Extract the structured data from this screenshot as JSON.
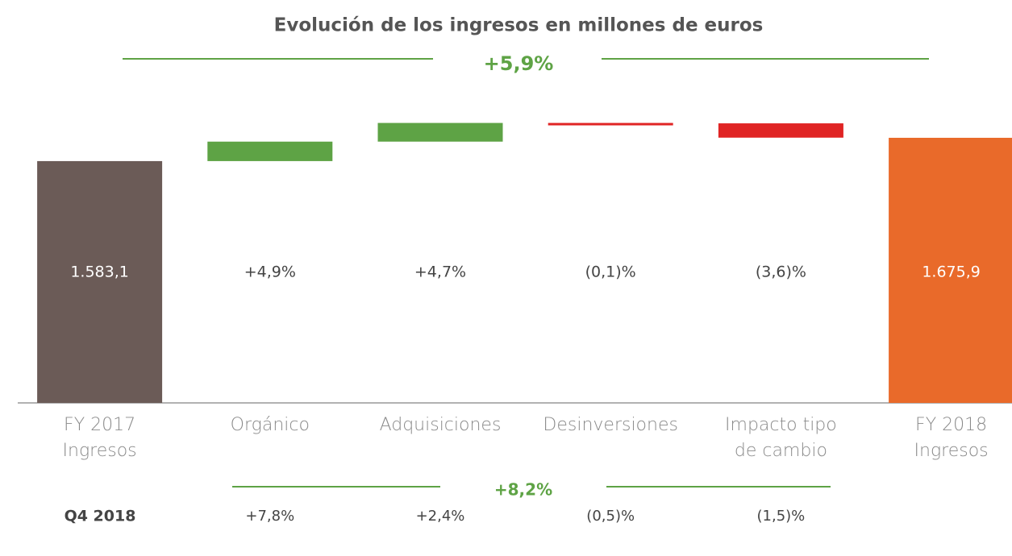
{
  "chart_data": {
    "type": "waterfall",
    "title": "Evolución de los ingresos en millones de euros",
    "total_change": "+5,9%",
    "categories": [
      "FY 2017\nIngresos",
      "Orgánico",
      "Adquisiciones",
      "Desinversiones",
      "Impacto tipo\nde cambio",
      "FY 2018\nIngresos"
    ],
    "values": [
      1583.1,
      4.9,
      4.7,
      -0.1,
      -3.6,
      1675.9
    ],
    "value_labels": [
      "1.583,1",
      "+4,9%",
      "+4,7%",
      "(0,1)%",
      "(3,6)%",
      "1.675,9"
    ],
    "colors": [
      "#6b5b57",
      "#5ea345",
      "#5ea345",
      "#e02424",
      "#e02424",
      "#e96a2a"
    ],
    "ylim": [
      620,
      1700
    ],
    "quarter_row": {
      "label": "Q4 2018",
      "total_change": "+8,2%",
      "values": [
        "+7,8%",
        "+2,4%",
        "(0,5)%",
        "(1,5)%"
      ]
    }
  }
}
